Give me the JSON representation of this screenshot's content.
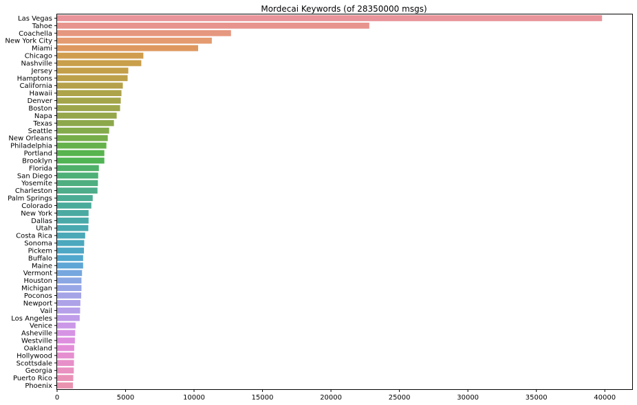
{
  "chart_data": {
    "type": "bar",
    "orientation": "horizontal",
    "title": "Mordecai Keywords (of 28350000 msgs)",
    "xlabel": "",
    "ylabel": "",
    "xlim": [
      0,
      42000
    ],
    "xticks": [
      0,
      5000,
      10000,
      15000,
      20000,
      25000,
      30000,
      35000,
      40000
    ],
    "grid": false,
    "legend": "none",
    "categories": [
      "Las Vegas",
      "Tahoe",
      "Coachella",
      "New York City",
      "Miami",
      "Chicago",
      "Nashville",
      "Jersey",
      "Hamptons",
      "California",
      "Hawaii",
      "Denver",
      "Boston",
      "Napa",
      "Texas",
      "Seattle",
      "New Orleans",
      "Philadelphia",
      "Portland",
      "Brooklyn",
      "Florida",
      "San Diego",
      "Yosemite",
      "Charleston",
      "Palm Springs",
      "Colorado",
      "New York",
      "Dallas",
      "Utah",
      "Costa Rica",
      "Sonoma",
      "Pickem",
      "Buffalo",
      "Maine",
      "Vermont",
      "Houston",
      "Michigan",
      "Poconos",
      "Newport",
      "Vail",
      "Los Angeles",
      "Venice",
      "Asheville",
      "Westville",
      "Oakland",
      "Hollywood",
      "Scottsdale",
      "Georgia",
      "Puerto Rico",
      "Phoenix"
    ],
    "values": [
      39800,
      22800,
      12700,
      11300,
      10300,
      6300,
      6150,
      5200,
      5150,
      4800,
      4700,
      4650,
      4600,
      4350,
      4150,
      3800,
      3700,
      3600,
      3450,
      3450,
      3050,
      3000,
      2980,
      2950,
      2600,
      2500,
      2300,
      2300,
      2280,
      2050,
      1980,
      1960,
      1900,
      1900,
      1820,
      1780,
      1780,
      1760,
      1700,
      1680,
      1650,
      1350,
      1320,
      1300,
      1250,
      1240,
      1230,
      1220,
      1180,
      1160
    ],
    "colors": [
      "#e8949a",
      "#e8948e",
      "#e6977f",
      "#e49b6f",
      "#de985f",
      "#d09d4e",
      "#c99f4b",
      "#c49f4a",
      "#bda04a",
      "#b5a14a",
      "#aca34b",
      "#a4a54b",
      "#9da64b",
      "#95a64b",
      "#8ca84b",
      "#84ab4b",
      "#76ae4a",
      "#65b14b",
      "#57b44e",
      "#50b454",
      "#4fb06a",
      "#4eaf77",
      "#4eae80",
      "#4ead8a",
      "#4cac94",
      "#4bab9b",
      "#4aaaa2",
      "#49a9a8",
      "#49a9b0",
      "#4aa8b7",
      "#4ba8be",
      "#4da7c5",
      "#51a7cd",
      "#5ea6d5",
      "#76a7de",
      "#8ba7e3",
      "#98a6e6",
      "#a4a4e7",
      "#ada2e8",
      "#b5a0e9",
      "#bf9de9",
      "#cb98e7",
      "#d693e4",
      "#de8edf",
      "#e38dd8",
      "#e58ed0",
      "#e78fc8",
      "#e991c0",
      "#e992b8",
      "#e993b0"
    ]
  }
}
